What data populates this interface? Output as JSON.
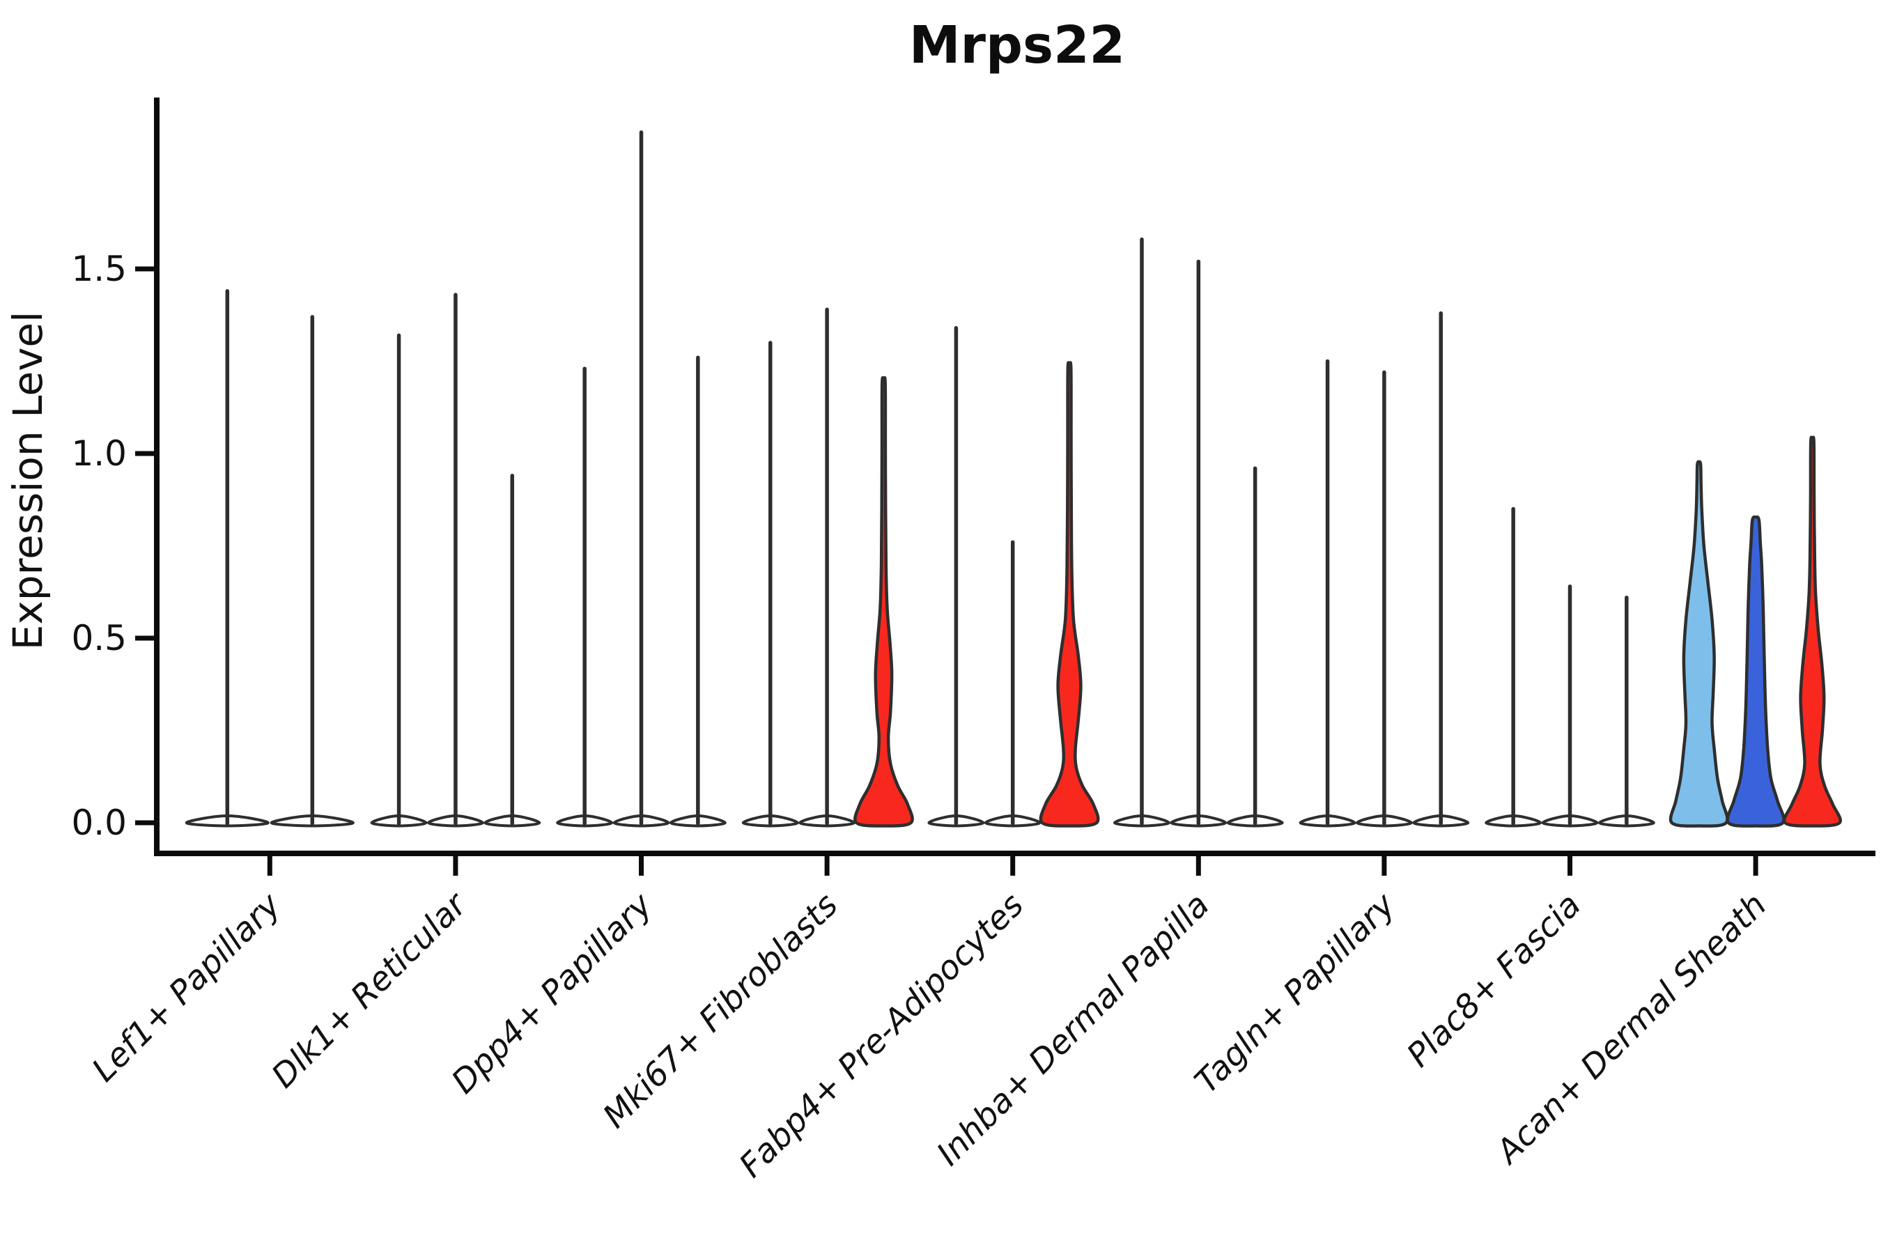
{
  "chart_data": {
    "type": "violin",
    "title": "Mrps22",
    "xlabel": "",
    "ylabel": "Expression Level",
    "ylim": [
      -0.077,
      1.964
    ],
    "yticks": [
      0.0,
      0.5,
      1.0,
      1.5
    ],
    "ytick_labels": [
      "0.0",
      "0.5",
      "1.0",
      "1.5"
    ],
    "grid": false,
    "legend": "none",
    "colors": {
      "red": "#F8281E",
      "light_blue": "#7EBEEA",
      "dark_blue": "#3A63DB",
      "outline": "#2E2E2E",
      "axis": "#0b0b0b",
      "spike_fill": "#FFFFFF"
    },
    "categories": [
      "Lef1+ Papillary",
      "Dlk1+ Reticular",
      "Dpp4+ Papillary",
      "Mki67+ Fibroblasts",
      "Fabp4+ Pre-Adipocytes",
      "Inhba+ Dermal Papilla",
      "Tagln+ Papillary",
      "Plac8+ Fascia",
      "Acan+ Dermal Sheath"
    ],
    "groups": [
      {
        "label": "Lef1+ Papillary",
        "violins": [
          {
            "type": "spike",
            "max": 1.44,
            "color_key": "spike_fill"
          },
          {
            "type": "spike",
            "max": 1.37,
            "color_key": "spike_fill"
          }
        ]
      },
      {
        "label": "Dlk1+ Reticular",
        "violins": [
          {
            "type": "spike",
            "max": 1.32,
            "color_key": "spike_fill"
          },
          {
            "type": "spike",
            "max": 1.43,
            "color_key": "spike_fill"
          },
          {
            "type": "spike",
            "max": 0.94,
            "color_key": "spike_fill"
          }
        ]
      },
      {
        "label": "Dpp4+ Papillary",
        "violins": [
          {
            "type": "spike",
            "max": 1.23,
            "color_key": "spike_fill"
          },
          {
            "type": "spike",
            "max": 1.87,
            "color_key": "spike_fill"
          },
          {
            "type": "spike",
            "max": 1.26,
            "color_key": "spike_fill"
          }
        ]
      },
      {
        "label": "Mki67+ Fibroblasts",
        "violins": [
          {
            "type": "spike",
            "max": 1.3,
            "color_key": "spike_fill"
          },
          {
            "type": "spike",
            "max": 1.39,
            "color_key": "spike_fill"
          },
          {
            "type": "kde",
            "max": 1.19,
            "color_key": "red",
            "profile": [
              [
                0,
                1.0
              ],
              [
                0.05,
                0.88
              ],
              [
                0.1,
                0.52
              ],
              [
                0.16,
                0.25
              ],
              [
                0.23,
                0.17
              ],
              [
                0.3,
                0.25
              ],
              [
                0.4,
                0.3
              ],
              [
                0.48,
                0.24
              ],
              [
                0.58,
                0.13
              ],
              [
                0.7,
                0.085
              ],
              [
                0.85,
                0.07
              ],
              [
                1.02,
                0.062
              ],
              [
                1.19,
                0.058
              ]
            ]
          }
        ]
      },
      {
        "label": "Fabp4+ Pre-Adipocytes",
        "violins": [
          {
            "type": "spike",
            "max": 1.34,
            "color_key": "spike_fill"
          },
          {
            "type": "spike",
            "max": 0.76,
            "color_key": "spike_fill"
          },
          {
            "type": "kde",
            "max": 1.23,
            "color_key": "red",
            "profile": [
              [
                0,
                1.0
              ],
              [
                0.05,
                0.88
              ],
              [
                0.1,
                0.48
              ],
              [
                0.15,
                0.25
              ],
              [
                0.2,
                0.22
              ],
              [
                0.28,
                0.33
              ],
              [
                0.37,
                0.42
              ],
              [
                0.45,
                0.33
              ],
              [
                0.55,
                0.15
              ],
              [
                0.68,
                0.09
              ],
              [
                0.85,
                0.07
              ],
              [
                1.05,
                0.062
              ],
              [
                1.23,
                0.058
              ]
            ]
          }
        ]
      },
      {
        "label": "Inhba+ Dermal Papilla",
        "violins": [
          {
            "type": "spike",
            "max": 1.58,
            "color_key": "spike_fill"
          },
          {
            "type": "spike",
            "max": 1.52,
            "color_key": "spike_fill"
          },
          {
            "type": "spike",
            "max": 0.96,
            "color_key": "spike_fill"
          }
        ]
      },
      {
        "label": "Tagln+ Papillary",
        "violins": [
          {
            "type": "spike",
            "max": 1.25,
            "color_key": "spike_fill"
          },
          {
            "type": "spike",
            "max": 1.22,
            "color_key": "spike_fill"
          },
          {
            "type": "spike",
            "max": 1.38,
            "color_key": "spike_fill"
          }
        ]
      },
      {
        "label": "Plac8+ Fascia",
        "violins": [
          {
            "type": "spike",
            "max": 0.85,
            "color_key": "spike_fill"
          },
          {
            "type": "spike",
            "max": 0.64,
            "color_key": "spike_fill"
          },
          {
            "type": "spike",
            "max": 0.61,
            "color_key": "spike_fill"
          }
        ]
      },
      {
        "label": "Acan+ Dermal Sheath",
        "violins": [
          {
            "type": "kde",
            "max": 0.97,
            "color_key": "light_blue",
            "profile": [
              [
                0,
                1.0
              ],
              [
                0.06,
                0.85
              ],
              [
                0.12,
                0.68
              ],
              [
                0.2,
                0.56
              ],
              [
                0.27,
                0.48
              ],
              [
                0.35,
                0.52
              ],
              [
                0.45,
                0.56
              ],
              [
                0.55,
                0.48
              ],
              [
                0.65,
                0.33
              ],
              [
                0.75,
                0.18
              ],
              [
                0.85,
                0.1
              ],
              [
                0.92,
                0.075
              ],
              [
                0.97,
                0.06
              ]
            ]
          },
          {
            "type": "kde",
            "max": 0.82,
            "color_key": "dark_blue",
            "profile": [
              [
                0,
                1.0
              ],
              [
                0.06,
                0.8
              ],
              [
                0.12,
                0.56
              ],
              [
                0.2,
                0.44
              ],
              [
                0.3,
                0.37
              ],
              [
                0.4,
                0.33
              ],
              [
                0.5,
                0.3
              ],
              [
                0.6,
                0.27
              ],
              [
                0.7,
                0.22
              ],
              [
                0.76,
                0.17
              ],
              [
                0.82,
                0.12
              ]
            ]
          },
          {
            "type": "kde",
            "max": 1.03,
            "color_key": "red",
            "profile": [
              [
                0,
                1.0
              ],
              [
                0.05,
                0.75
              ],
              [
                0.1,
                0.45
              ],
              [
                0.16,
                0.28
              ],
              [
                0.25,
                0.37
              ],
              [
                0.34,
                0.43
              ],
              [
                0.43,
                0.35
              ],
              [
                0.52,
                0.22
              ],
              [
                0.62,
                0.12
              ],
              [
                0.72,
                0.085
              ],
              [
                0.88,
                0.065
              ],
              [
                1.03,
                0.058
              ]
            ]
          }
        ]
      }
    ]
  }
}
